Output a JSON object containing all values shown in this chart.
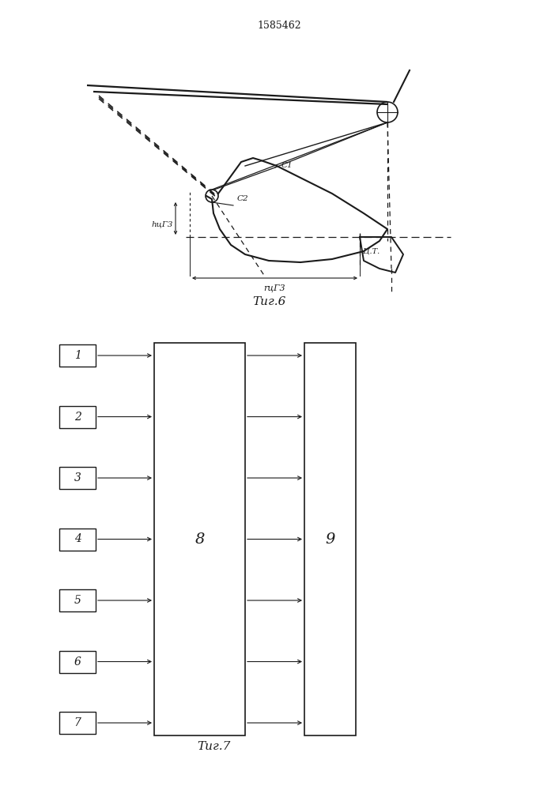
{
  "title": "1585462",
  "fig6_caption": "Τиг.6",
  "fig7_caption": "Τиг.7",
  "background_color": "#ffffff",
  "line_color": "#1a1a1a",
  "box_labels": [
    "1",
    "2",
    "3",
    "4",
    "5",
    "6",
    "7"
  ],
  "block8_label": "8",
  "block9_label": "9",
  "label_C1": "C1",
  "label_C2": "C2",
  "label_hцт3": "hцГ3",
  "label_rцт3": "rцГ3",
  "label_CT": "Ц.Т."
}
